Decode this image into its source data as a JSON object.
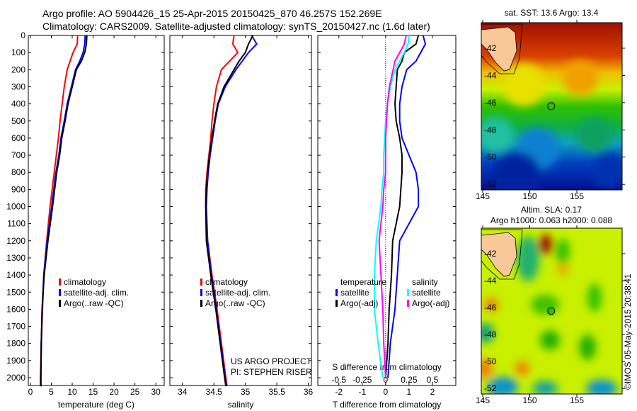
{
  "header": {
    "line1": "Argo profile: AO 5904426_15 25-Apr-2015 20150425_870 46.257S 152.269E",
    "line2": "Climatology: CARS2009. Satellite-adjusted climatology: synTS_20150427.nc (1.6d later)"
  },
  "colors": {
    "climatology": "#ff0000",
    "satellite": "#0000ff",
    "argo": "#000000",
    "sal_satellite": "#00ffff",
    "sal_argo": "#ff00ff"
  },
  "chart_data": [
    {
      "type": "line",
      "name": "temperature-profile",
      "xlabel": "temperature (deg C)",
      "ylabel": "",
      "xlim": [
        -0.5,
        32
      ],
      "ylim": [
        2070,
        0
      ],
      "xticks": [
        "0",
        "5",
        "10",
        "15",
        "20",
        "25",
        "30"
      ],
      "yticks": [
        "0",
        "100",
        "200",
        "300",
        "400",
        "500",
        "600",
        "700",
        "800",
        "900",
        "1000",
        "1100",
        "1200",
        "1300",
        "1400",
        "1500",
        "1600",
        "1700",
        "1800",
        "1900",
        "2000"
      ],
      "depth": [
        0,
        50,
        100,
        150,
        200,
        300,
        400,
        500,
        600,
        700,
        800,
        900,
        1000,
        1200,
        1400,
        1600,
        1800,
        2000,
        2050
      ],
      "legend": [
        "climatology",
        "satellite-adj. clim.",
        "Argo(..raw -QC)"
      ],
      "series": [
        {
          "name": "climatology",
          "values": [
            11.3,
            11.2,
            10.2,
            9.5,
            8.8,
            8.1,
            7.6,
            7.1,
            6.7,
            6.2,
            5.7,
            5.2,
            4.7,
            3.9,
            3.2,
            2.9,
            2.6,
            2.4,
            2.4
          ]
        },
        {
          "name": "satellite-adj. clim.",
          "values": [
            13.1,
            13.0,
            12.6,
            11.8,
            10.8,
            9.8,
            8.8,
            8.1,
            7.3,
            6.8,
            6.1,
            5.6,
            5.1,
            4.0,
            3.2,
            2.8,
            2.6,
            2.5,
            2.5
          ]
        },
        {
          "name": "Argo(..raw -QC)",
          "values": [
            13.5,
            13.4,
            13.0,
            12.2,
            11.0,
            10.0,
            9.0,
            8.3,
            7.5,
            7.0,
            6.3,
            5.8,
            5.3,
            4.2,
            3.3,
            2.8,
            2.6,
            2.5,
            2.5
          ]
        }
      ]
    },
    {
      "type": "line",
      "name": "salinity-profile",
      "xlabel": "salinity",
      "xlim": [
        33.8,
        36.05
      ],
      "ylim": [
        2070,
        0
      ],
      "xticks": [
        "34",
        "34.5",
        "35",
        "35.5",
        "36"
      ],
      "depth": [
        0,
        50,
        100,
        150,
        200,
        300,
        400,
        500,
        600,
        700,
        800,
        900,
        1000,
        1200,
        1400,
        1600,
        1800,
        2000,
        2050
      ],
      "legend": [
        "climatology",
        "satellite-adj. clim.",
        "Argo(..raw -QC)"
      ],
      "annotation": [
        "US ARGO PROJECT",
        "PI: STEPHEN RISER"
      ],
      "series": [
        {
          "name": "climatology",
          "values": [
            34.82,
            34.8,
            34.88,
            34.75,
            34.62,
            34.54,
            34.5,
            34.47,
            34.45,
            34.42,
            34.39,
            34.37,
            34.37,
            34.4,
            34.47,
            34.55,
            34.62,
            34.69,
            34.71
          ]
        },
        {
          "name": "satellite-adj. clim.",
          "values": [
            35.1,
            35.18,
            35.05,
            34.95,
            34.85,
            34.68,
            34.57,
            34.52,
            34.48,
            34.44,
            34.41,
            34.39,
            34.38,
            34.4,
            34.46,
            34.54,
            34.61,
            34.68,
            34.7
          ]
        },
        {
          "name": "Argo(..raw -QC)",
          "values": [
            35.12,
            35.05,
            35.0,
            34.9,
            34.82,
            34.66,
            34.56,
            34.51,
            34.47,
            34.43,
            34.4,
            34.38,
            34.37,
            34.38,
            34.45,
            34.53,
            34.6,
            34.67,
            34.69
          ]
        }
      ]
    },
    {
      "type": "line",
      "name": "difference-profile",
      "xlabel": "T difference from climatology",
      "x2label": "S difference from climatology",
      "xlim": [
        -2.9,
        3.0
      ],
      "ylim": [
        2070,
        0
      ],
      "xticks": [
        "-2",
        "-1",
        "0",
        "1",
        "2"
      ],
      "x2ticks": [
        "-0.5",
        "-0.25",
        "0",
        "0.25",
        "0.5"
      ],
      "depth": [
        0,
        50,
        100,
        150,
        200,
        300,
        400,
        500,
        600,
        700,
        800,
        900,
        1000,
        1200,
        1400,
        1600,
        1800,
        2000
      ],
      "legend_headers": [
        "temperature",
        "salinity"
      ],
      "legend": [
        "satellite",
        "Argo(-adj)",
        "satellite",
        "Argo(-adj)"
      ],
      "series": [
        {
          "name": "T satellite",
          "unit": "T",
          "values": [
            1.6,
            1.7,
            1.5,
            1.3,
            0.9,
            0.7,
            0.6,
            0.6,
            0.7,
            1.0,
            1.3,
            1.4,
            1.4,
            0.6,
            0.5,
            0.4,
            0.2,
            0.1
          ]
        },
        {
          "name": "T Argo(-adj)",
          "unit": "T",
          "values": [
            1.4,
            1.3,
            0.8,
            0.7,
            0.5,
            0.45,
            0.4,
            0.45,
            0.6,
            0.7,
            0.7,
            0.65,
            0.6,
            0.3,
            0.25,
            0.15,
            0.1,
            0.0
          ]
        },
        {
          "name": "S satellite",
          "unit": "S",
          "values": [
            0.25,
            0.24,
            0.2,
            0.15,
            0.1,
            0.05,
            0.02,
            0.0,
            -0.01,
            -0.02,
            -0.02,
            -0.04,
            -0.05,
            -0.1,
            -0.12,
            -0.12,
            -0.08,
            -0.03
          ]
        },
        {
          "name": "S Argo(-adj)",
          "unit": "S",
          "values": [
            0.22,
            0.2,
            0.15,
            0.1,
            0.08,
            0.04,
            0.02,
            0.01,
            0.0,
            0.0,
            0.0,
            -0.02,
            -0.03,
            -0.07,
            -0.05,
            -0.03,
            -0.02,
            0.0
          ]
        }
      ]
    },
    {
      "type": "heatmap",
      "name": "sst-map",
      "title": "sat. SST: 13.6 Argo: 13.4",
      "xticks": [
        "145",
        "150",
        "155"
      ],
      "yticks": [
        "-42",
        "-44",
        "-46",
        "-48",
        "-50",
        "-52"
      ],
      "argo_position": {
        "lon": 152.269,
        "lat": -46.257
      }
    },
    {
      "type": "heatmap",
      "name": "sla-map",
      "title": "Altim. SLA: 0.17",
      "subtitle": "Argo h1000: 0.063 h2000: 0.088",
      "xticks": [
        "145",
        "150",
        "155"
      ],
      "yticks": [
        "-42",
        "-44",
        "-46",
        "-48",
        "-50",
        "-52"
      ],
      "side_label": "©IMOS 05-May-2015 20:38:41",
      "argo_position": {
        "lon": 152.269,
        "lat": -46.257
      }
    }
  ]
}
